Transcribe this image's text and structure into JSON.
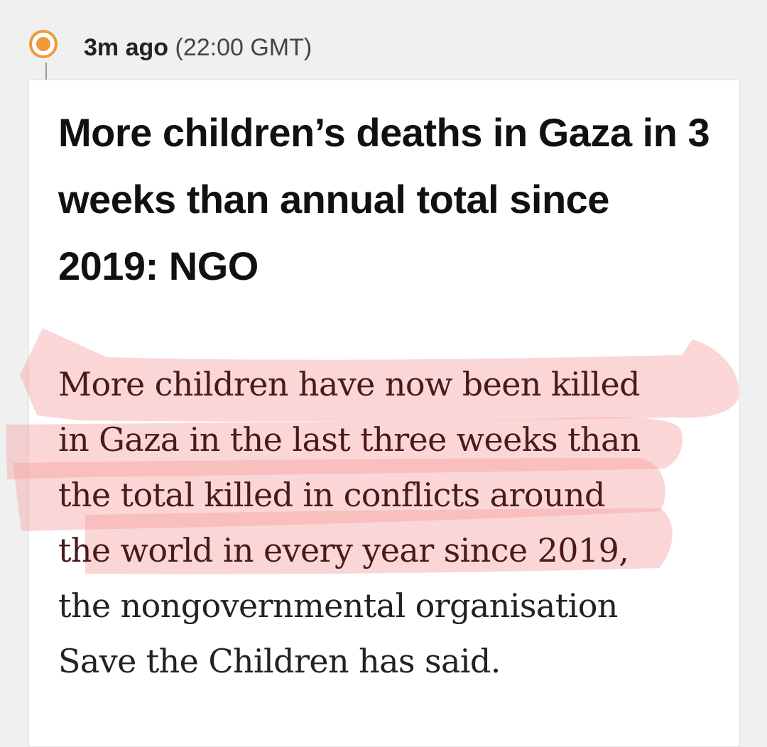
{
  "entry": {
    "relative_time": "3m ago",
    "absolute_time": "(22:00 GMT)"
  },
  "article": {
    "headline": "More children’s deaths in Gaza in 3 weeks than annual total since 2019: NGO",
    "body_lines": [
      "More children have now been killed",
      "in Gaza in the last three weeks than",
      "the total killed in conflicts around",
      "the world in every year since 2019,",
      "the nongovernmental organisation",
      "Save the Children has said."
    ]
  },
  "colors": {
    "accent": "#ee9a3a",
    "highlight": "#f59a9a",
    "background": "#f0f0f0"
  }
}
